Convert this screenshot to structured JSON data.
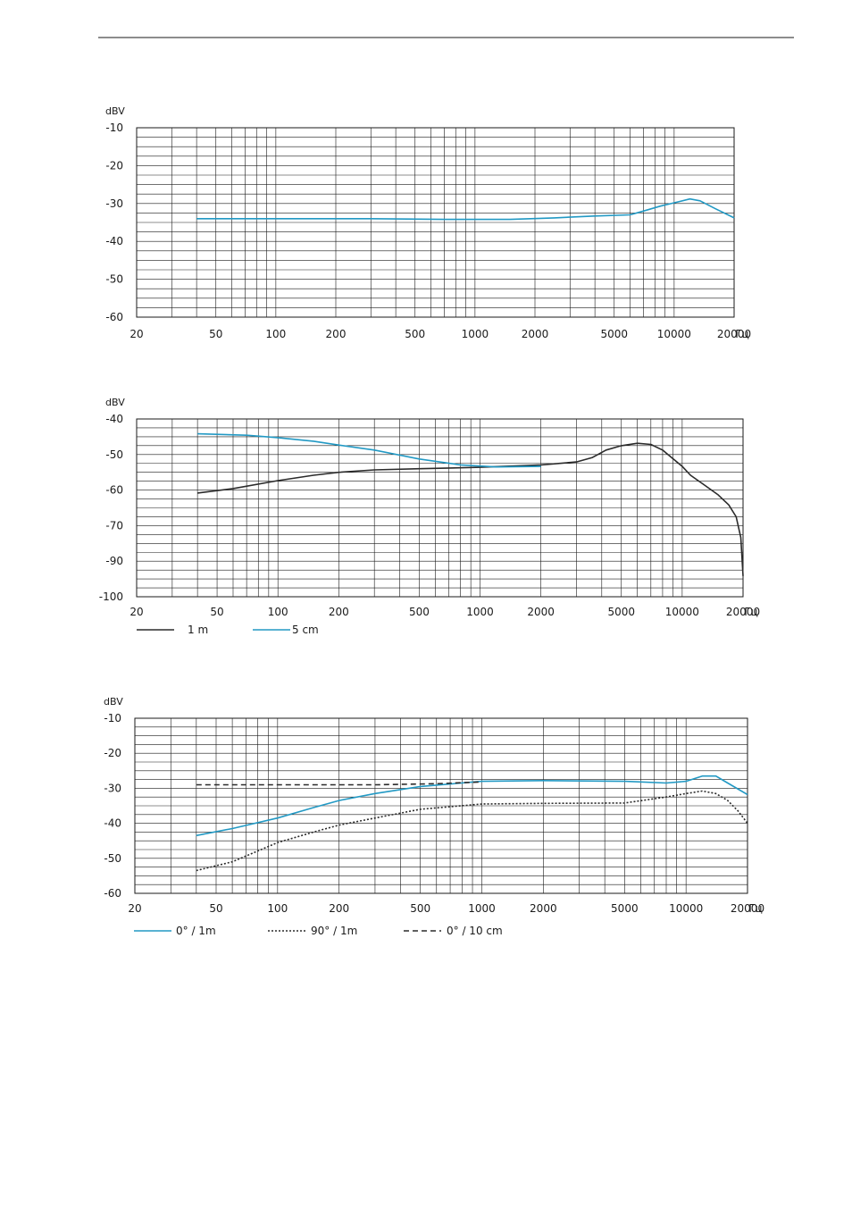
{
  "page": {
    "header_rule": true
  },
  "colors": {
    "cyan": "#2299c4",
    "dark": "#2b2b2b",
    "grid": "#1a1a1a"
  },
  "chart_data": [
    {
      "type": "line",
      "scale_x": "log",
      "ylabel": "dBV",
      "xunit": "Гц",
      "xlim": [
        20,
        20000
      ],
      "ylim": [
        -60,
        -10
      ],
      "xtick_labels": [
        "20",
        "50",
        "100",
        "200",
        "500",
        "1000",
        "2000",
        "5000",
        "10000",
        "20000"
      ],
      "ytick_labels": [
        "-10",
        "-20",
        "-30",
        "-40",
        "-50",
        "-60"
      ],
      "grid": true,
      "legend": [],
      "series": [
        {
          "color": "#2299c4",
          "dash": "solid",
          "points": [
            [
              40,
              -34
            ],
            [
              100,
              -34
            ],
            [
              300,
              -34
            ],
            [
              700,
              -34.2
            ],
            [
              1500,
              -34.2
            ],
            [
              2500,
              -33.8
            ],
            [
              4000,
              -33.3
            ],
            [
              6000,
              -33
            ],
            [
              7000,
              -32
            ],
            [
              8500,
              -30.7
            ],
            [
              10000,
              -29.8
            ],
            [
              12000,
              -28.8
            ],
            [
              13500,
              -29.3
            ],
            [
              16000,
              -31.3
            ],
            [
              20000,
              -33.8
            ]
          ]
        }
      ]
    },
    {
      "type": "line",
      "scale_x": "log",
      "ylabel": "dBV",
      "xunit": "Гц",
      "xlim": [
        20,
        20000
      ],
      "ylim": [
        -100,
        -40
      ],
      "xtick_labels": [
        "20",
        "50",
        "100",
        "200",
        "500",
        "1000",
        "2000",
        "5000",
        "10000",
        "20000"
      ],
      "ytick_labels": [
        "-40",
        "-50",
        "-60",
        "-70",
        "-90",
        "-100"
      ],
      "grid": true,
      "legend": [
        {
          "label": "1 m",
          "color": "#2b2b2b",
          "dash": "solid"
        },
        {
          "label": "5 cm",
          "color": "#2299c4",
          "dash": "solid"
        }
      ],
      "series": [
        {
          "name": "1 m",
          "color": "#2b2b2b",
          "dash": "solid",
          "points": [
            [
              40,
              -65
            ],
            [
              60,
              -63.5
            ],
            [
              100,
              -60.8
            ],
            [
              150,
              -59
            ],
            [
              200,
              -58
            ],
            [
              300,
              -57.2
            ],
            [
              500,
              -56.8
            ],
            [
              1000,
              -56.3
            ],
            [
              2000,
              -55.5
            ],
            [
              3000,
              -54.5
            ],
            [
              3600,
              -53
            ],
            [
              4200,
              -50.5
            ],
            [
              5000,
              -49
            ],
            [
              6000,
              -48.2
            ],
            [
              7000,
              -48.6
            ],
            [
              8000,
              -50.5
            ],
            [
              10000,
              -56
            ],
            [
              11000,
              -59
            ],
            [
              13000,
              -62.5
            ],
            [
              15000,
              -65.5
            ],
            [
              17000,
              -69
            ],
            [
              18500,
              -73
            ],
            [
              19500,
              -80
            ],
            [
              20000,
              -93
            ]
          ]
        },
        {
          "name": "5 cm",
          "color": "#2299c4",
          "dash": "solid",
          "points": [
            [
              40,
              -45
            ],
            [
              70,
              -45.5
            ],
            [
              100,
              -46.3
            ],
            [
              150,
              -47.5
            ],
            [
              200,
              -48.8
            ],
            [
              300,
              -50.5
            ],
            [
              500,
              -53.5
            ],
            [
              800,
              -55.5
            ],
            [
              1200,
              -56.2
            ],
            [
              2000,
              -56
            ]
          ]
        }
      ]
    },
    {
      "type": "line",
      "scale_x": "log",
      "ylabel": "dBV",
      "xunit": "Гц",
      "xlim": [
        20,
        20000
      ],
      "ylim": [
        -60,
        -10
      ],
      "xtick_labels": [
        "20",
        "50",
        "100",
        "200",
        "500",
        "1000",
        "2000",
        "5000",
        "10000",
        "20000"
      ],
      "ytick_labels": [
        "-10",
        "-20",
        "-30",
        "-40",
        "-50",
        "-60"
      ],
      "grid": true,
      "legend": [
        {
          "label": "0° / 1m",
          "color": "#2299c4",
          "dash": "solid"
        },
        {
          "label": "90° / 1m",
          "color": "#2b2b2b",
          "dash": "dotted"
        },
        {
          "label": "0° / 10 cm",
          "color": "#2b2b2b",
          "dash": "dashed"
        }
      ],
      "series": [
        {
          "name": "0° / 1m",
          "color": "#2299c4",
          "dash": "solid",
          "points": [
            [
              40,
              -43.5
            ],
            [
              60,
              -41.5
            ],
            [
              100,
              -38.5
            ],
            [
              150,
              -35.5
            ],
            [
              200,
              -33.5
            ],
            [
              300,
              -31.5
            ],
            [
              500,
              -29.5
            ],
            [
              1000,
              -28
            ],
            [
              2000,
              -27.8
            ],
            [
              5000,
              -28
            ],
            [
              8000,
              -28.5
            ],
            [
              10000,
              -28
            ],
            [
              12000,
              -26.5
            ],
            [
              14000,
              -26.5
            ],
            [
              16000,
              -28.5
            ],
            [
              20000,
              -31.8
            ]
          ]
        },
        {
          "name": "90° / 1m",
          "color": "#2b2b2b",
          "dash": "dotted",
          "points": [
            [
              40,
              -53.5
            ],
            [
              60,
              -51
            ],
            [
              100,
              -45.5
            ],
            [
              150,
              -42.5
            ],
            [
              200,
              -40.5
            ],
            [
              300,
              -38.5
            ],
            [
              500,
              -36
            ],
            [
              1000,
              -34.5
            ],
            [
              2000,
              -34.3
            ],
            [
              5000,
              -34.2
            ],
            [
              8000,
              -32.5
            ],
            [
              10000,
              -31.5
            ],
            [
              12000,
              -30.8
            ],
            [
              14000,
              -31.5
            ],
            [
              16000,
              -33.5
            ],
            [
              18000,
              -36.5
            ],
            [
              20000,
              -40
            ]
          ]
        },
        {
          "name": "0° / 10 cm",
          "color": "#2b2b2b",
          "dash": "dashed",
          "points": [
            [
              40,
              -29
            ],
            [
              100,
              -29
            ],
            [
              300,
              -29
            ],
            [
              600,
              -28.7
            ],
            [
              900,
              -28.3
            ],
            [
              1000,
              -28.2
            ]
          ]
        }
      ]
    }
  ]
}
